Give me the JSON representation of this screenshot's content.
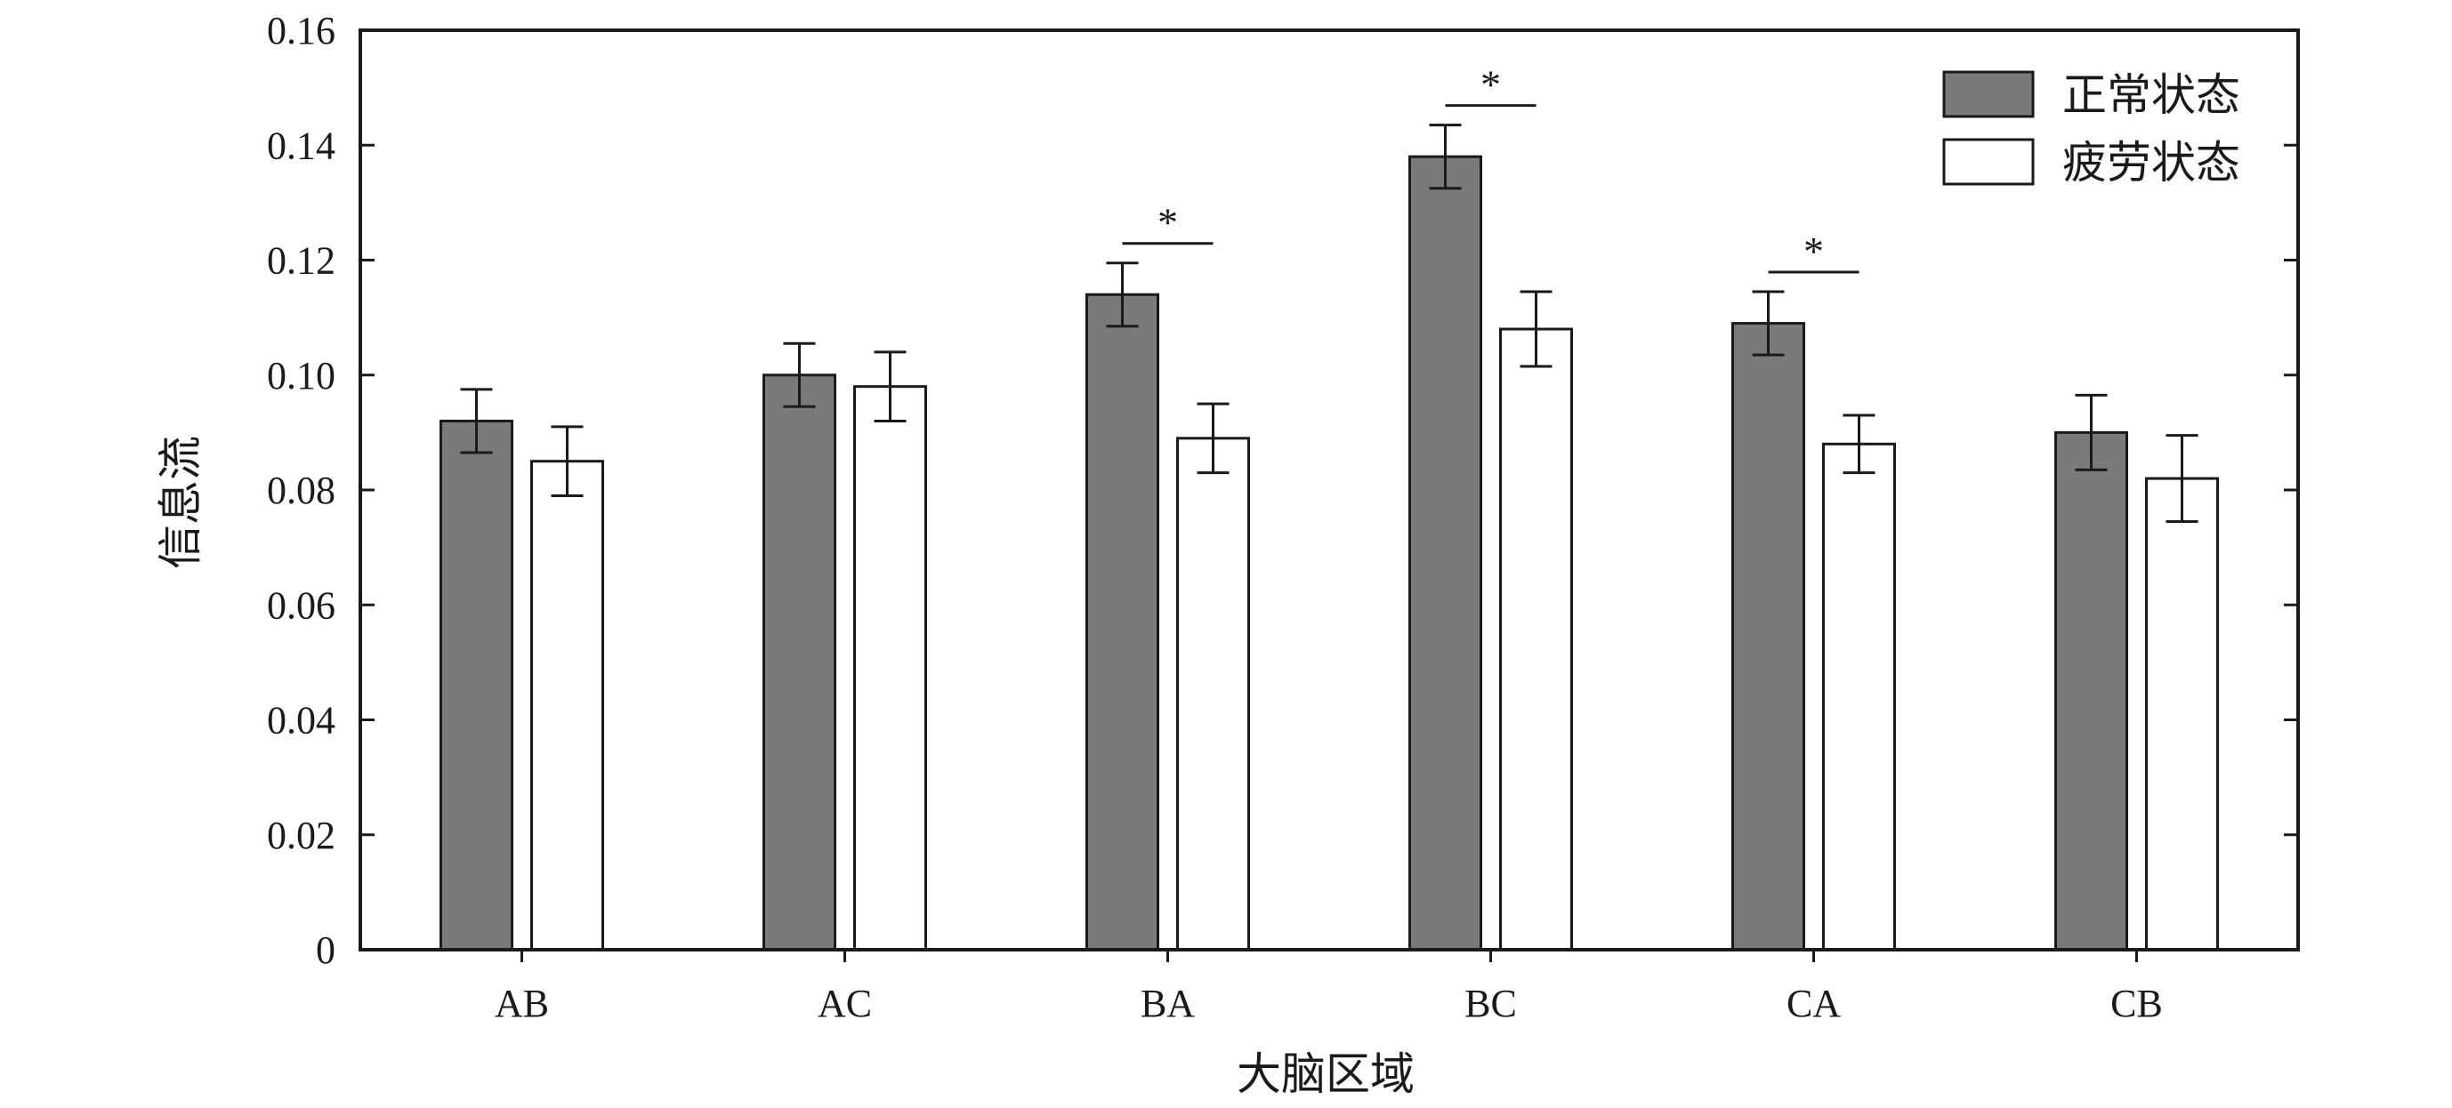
{
  "chart_data": {
    "type": "bar",
    "title": "",
    "xlabel": "大脑区域",
    "ylabel": "信息流",
    "categories": [
      "AB",
      "AC",
      "BA",
      "BC",
      "CA",
      "CB"
    ],
    "ylim": [
      0,
      0.16
    ],
    "yticks": [
      "0",
      "0.02",
      "0.04",
      "0.06",
      "0.08",
      "0.10",
      "0.12",
      "0.14",
      "0.16"
    ],
    "grid": false,
    "legend_position": "top-right",
    "series": [
      {
        "name": "正常状态",
        "color": "#7a7a7a",
        "values": [
          0.092,
          0.1,
          0.114,
          0.138,
          0.109,
          0.09
        ],
        "errors": [
          0.0055,
          0.0055,
          0.0055,
          0.0055,
          0.0055,
          0.0065
        ]
      },
      {
        "name": "疲劳状态",
        "color": "#ffffff",
        "values": [
          0.085,
          0.098,
          0.089,
          0.108,
          0.088,
          0.082
        ],
        "errors": [
          0.006,
          0.006,
          0.006,
          0.0065,
          0.005,
          0.0075
        ]
      }
    ],
    "significance": [
      {
        "category": "BA",
        "label": "*"
      },
      {
        "category": "BC",
        "label": "*"
      },
      {
        "category": "CA",
        "label": "*"
      }
    ]
  }
}
